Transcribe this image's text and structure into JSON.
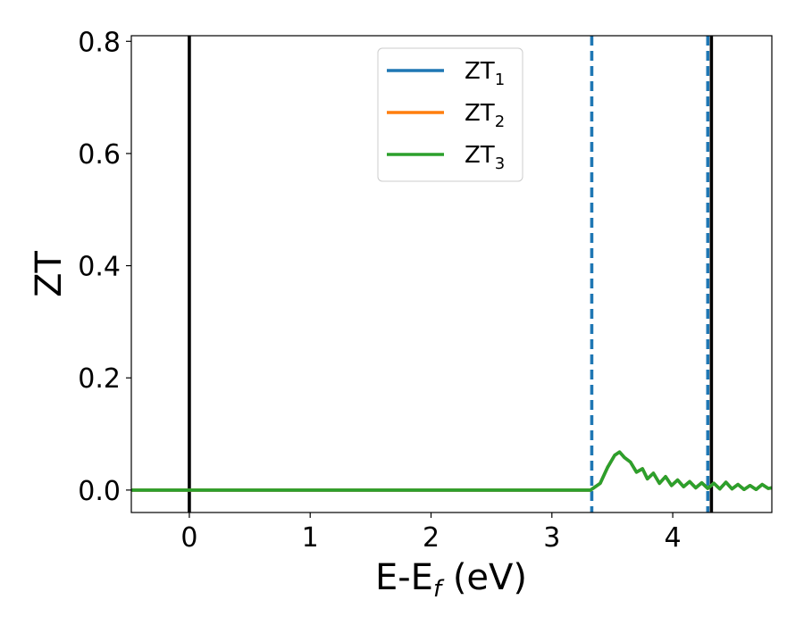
{
  "chart_data": {
    "type": "line",
    "xlabel": "E-E",
    "xlabel_sub": "f",
    "xlabel_unit": " (eV)",
    "ylabel": "ZT",
    "xlim": [
      -0.48,
      4.82
    ],
    "ylim": [
      -0.04,
      0.81
    ],
    "xticks": [
      0,
      1,
      2,
      3,
      4
    ],
    "xtick_labels": [
      "0",
      "1",
      "2",
      "3",
      "4"
    ],
    "yticks": [
      0.0,
      0.2,
      0.4,
      0.6,
      0.8
    ],
    "ytick_labels": [
      "0.0",
      "0.2",
      "0.4",
      "0.6",
      "0.8"
    ],
    "legend_placement": "upper-center",
    "grid": false,
    "series": [
      {
        "name": "ZT",
        "sub": "1",
        "color": "#1f77b4",
        "x": [
          -0.48,
          3.32,
          3.4,
          3.46,
          3.52,
          3.56,
          3.6,
          3.65,
          3.7,
          3.75,
          3.79,
          3.84,
          3.89,
          3.94,
          3.99,
          4.04,
          4.09,
          4.14,
          4.19,
          4.24,
          4.29,
          4.34,
          4.39,
          4.44,
          4.49,
          4.54,
          4.59,
          4.64,
          4.69,
          4.74,
          4.79,
          4.82
        ],
        "y": [
          0.0,
          0.0,
          0.012,
          0.04,
          0.062,
          0.068,
          0.058,
          0.05,
          0.032,
          0.038,
          0.02,
          0.03,
          0.012,
          0.024,
          0.008,
          0.018,
          0.006,
          0.015,
          0.004,
          0.013,
          0.003,
          0.012,
          0.002,
          0.014,
          0.002,
          0.01,
          0.001,
          0.008,
          0.001,
          0.01,
          0.003,
          0.004
        ]
      },
      {
        "name": "ZT",
        "sub": "2",
        "color": "#ff7f0e",
        "x": [
          -0.48,
          3.32,
          3.4,
          3.46,
          3.52,
          3.56,
          3.6,
          3.65,
          3.7,
          3.75,
          3.79,
          3.84,
          3.89,
          3.94,
          3.99,
          4.04,
          4.09,
          4.14,
          4.19,
          4.24,
          4.29,
          4.34,
          4.39,
          4.44,
          4.49,
          4.54,
          4.59,
          4.64,
          4.69,
          4.74,
          4.79,
          4.82
        ],
        "y": [
          0.0,
          0.0,
          0.012,
          0.04,
          0.062,
          0.068,
          0.058,
          0.05,
          0.032,
          0.038,
          0.02,
          0.03,
          0.012,
          0.024,
          0.008,
          0.018,
          0.006,
          0.015,
          0.004,
          0.013,
          0.003,
          0.012,
          0.002,
          0.014,
          0.002,
          0.01,
          0.001,
          0.008,
          0.001,
          0.01,
          0.003,
          0.004
        ]
      },
      {
        "name": "ZT",
        "sub": "3",
        "color": "#2ca02c",
        "x": [
          -0.48,
          3.32,
          3.4,
          3.46,
          3.52,
          3.56,
          3.6,
          3.65,
          3.7,
          3.75,
          3.79,
          3.84,
          3.89,
          3.94,
          3.99,
          4.04,
          4.09,
          4.14,
          4.19,
          4.24,
          4.29,
          4.34,
          4.39,
          4.44,
          4.49,
          4.54,
          4.59,
          4.64,
          4.69,
          4.74,
          4.79,
          4.82
        ],
        "y": [
          0.0,
          0.0,
          0.012,
          0.04,
          0.062,
          0.068,
          0.058,
          0.05,
          0.032,
          0.038,
          0.02,
          0.03,
          0.012,
          0.024,
          0.008,
          0.018,
          0.006,
          0.015,
          0.004,
          0.013,
          0.003,
          0.012,
          0.002,
          0.014,
          0.002,
          0.01,
          0.001,
          0.008,
          0.001,
          0.01,
          0.003,
          0.004
        ]
      }
    ],
    "vlines": [
      {
        "x": 0.0,
        "style": "solid",
        "color": "#000000"
      },
      {
        "x": 4.32,
        "style": "solid",
        "color": "#000000"
      },
      {
        "x": 3.33,
        "style": "dashed",
        "color": "#1f77b4"
      },
      {
        "x": 4.29,
        "style": "dashed",
        "color": "#1f77b4"
      }
    ]
  }
}
